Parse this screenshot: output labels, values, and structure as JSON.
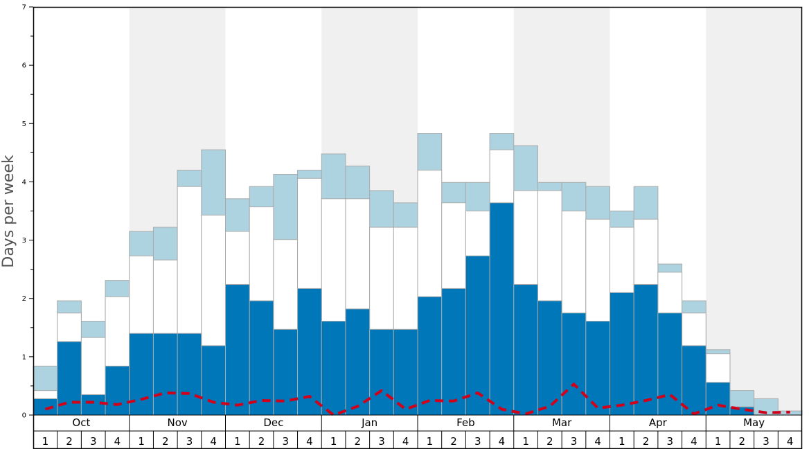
{
  "chart_data": {
    "type": "bar",
    "ylabel": "Days per week",
    "ylim": [
      0,
      7
    ],
    "y_ticks": [
      "0",
      "1",
      "2",
      "3",
      "4",
      "5",
      "6",
      "7"
    ],
    "months": [
      "Oct",
      "Nov",
      "Dec",
      "Jan",
      "Feb",
      "Mar",
      "Apr",
      "May"
    ],
    "week_labels": [
      "1",
      "2",
      "3",
      "4"
    ],
    "categories": [
      "Oct 1",
      "Oct 2",
      "Oct 3",
      "Oct 4",
      "Nov 1",
      "Nov 2",
      "Nov 3",
      "Nov 4",
      "Dec 1",
      "Dec 2",
      "Dec 3",
      "Dec 4",
      "Jan 1",
      "Jan 2",
      "Jan 3",
      "Jan 4",
      "Feb 1",
      "Feb 2",
      "Feb 3",
      "Feb 4",
      "Mar 1",
      "Mar 2",
      "Mar 3",
      "Mar 4",
      "Apr 1",
      "Apr 2",
      "Apr 3",
      "Apr 4",
      "May 1",
      "May 2",
      "May 3",
      "May 4"
    ],
    "series": [
      {
        "values": [
          0.28,
          1.26,
          0.35,
          0.84,
          1.4,
          1.4,
          1.4,
          1.19,
          2.24,
          1.96,
          1.47,
          2.17,
          1.61,
          1.82,
          1.47,
          1.47,
          2.03,
          2.17,
          2.73,
          3.64,
          2.24,
          1.96,
          1.75,
          1.61,
          2.1,
          2.24,
          1.75,
          1.19,
          0.56,
          0.14,
          0.0,
          0.0
        ]
      },
      {
        "values": [
          0.42,
          1.75,
          1.33,
          2.03,
          2.73,
          2.66,
          3.92,
          3.43,
          3.15,
          3.57,
          3.01,
          4.06,
          3.71,
          3.71,
          3.22,
          3.22,
          4.2,
          3.64,
          3.5,
          4.55,
          3.85,
          3.85,
          3.5,
          3.36,
          3.22,
          3.36,
          2.45,
          1.75,
          1.05,
          0.14,
          0.0,
          0.0
        ]
      },
      {
        "values": [
          0.84,
          1.96,
          1.61,
          2.31,
          3.15,
          3.22,
          4.2,
          4.55,
          3.71,
          3.92,
          4.13,
          4.2,
          4.48,
          4.27,
          3.85,
          3.64,
          4.83,
          3.99,
          3.99,
          4.83,
          4.62,
          3.99,
          3.99,
          3.92,
          3.5,
          3.92,
          2.59,
          1.96,
          1.12,
          0.42,
          0.28,
          0.07
        ]
      },
      {
        "values": [
          0.1,
          0.22,
          0.22,
          0.18,
          0.27,
          0.38,
          0.37,
          0.22,
          0.17,
          0.25,
          0.24,
          0.32,
          0.0,
          0.15,
          0.42,
          0.1,
          0.25,
          0.24,
          0.38,
          0.1,
          0.02,
          0.15,
          0.53,
          0.12,
          0.17,
          0.25,
          0.35,
          0.02,
          0.17,
          0.1,
          0.04,
          0.05
        ]
      }
    ],
    "colors": {
      "lower_bar": "#0077b8",
      "middle_bar": "#ffffff",
      "upper_bar": "#add3e0",
      "bar_border": "#aaaaaa",
      "dashed_line": "#d0021b",
      "band_shade": "#f0f0f0"
    },
    "grid": false,
    "legend": "none"
  }
}
